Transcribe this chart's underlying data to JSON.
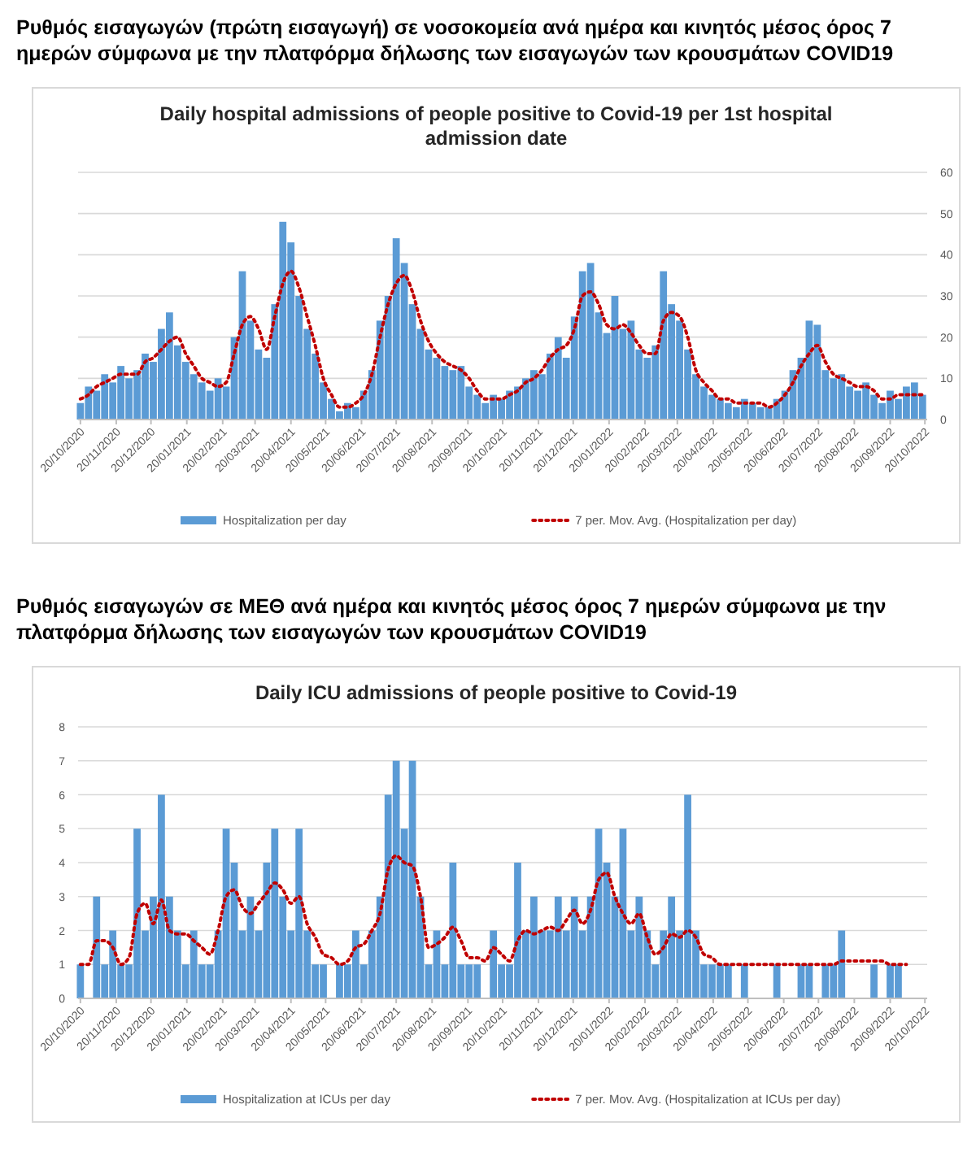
{
  "chart_data": [
    {
      "type": "bar",
      "title": "Ρυθμός εισαγωγών (πρώτη εισαγωγή) σε νοσοκομεία ανά ημέρα και κινητός μέσος όρος 7 ημερών σύμφωνα με την πλατφόρμα δήλωσης των εισαγωγών των κρουσμάτων COVID19",
      "subtitle": "Daily hospital admissions of people positive to Covid-19 per 1st hospital admission date",
      "grid": "y",
      "legend": "bottom",
      "x": [
        "2020-10-20",
        "2020-10-27",
        "2020-11-03",
        "2020-11-10",
        "2020-11-17",
        "2020-11-24",
        "2020-12-01",
        "2020-12-08",
        "2020-12-15",
        "2020-12-22",
        "2020-12-29",
        "2021-01-05",
        "2021-01-12",
        "2021-01-19",
        "2021-01-26",
        "2021-02-02",
        "2021-02-09",
        "2021-02-16",
        "2021-02-23",
        "2021-03-02",
        "2021-03-09",
        "2021-03-16",
        "2021-03-23",
        "2021-03-30",
        "2021-04-06",
        "2021-04-13",
        "2021-04-20",
        "2021-04-27",
        "2021-05-04",
        "2021-05-11",
        "2021-05-18",
        "2021-05-25",
        "2021-06-01",
        "2021-06-08",
        "2021-06-15",
        "2021-06-22",
        "2021-06-29",
        "2021-07-06",
        "2021-07-13",
        "2021-07-20",
        "2021-07-27",
        "2021-08-03",
        "2021-08-10",
        "2021-08-17",
        "2021-08-24",
        "2021-08-31",
        "2021-09-07",
        "2021-09-14",
        "2021-09-21",
        "2021-09-28",
        "2021-10-05",
        "2021-10-12",
        "2021-10-19",
        "2021-10-26",
        "2021-11-02",
        "2021-11-09",
        "2021-11-16",
        "2021-11-23",
        "2021-11-30",
        "2021-12-07",
        "2021-12-14",
        "2021-12-21",
        "2021-12-28",
        "2022-01-04",
        "2022-01-11",
        "2022-01-18",
        "2022-01-25",
        "2022-02-01",
        "2022-02-08",
        "2022-02-15",
        "2022-02-22",
        "2022-03-01",
        "2022-03-08",
        "2022-03-15",
        "2022-03-22",
        "2022-03-29",
        "2022-04-05",
        "2022-04-12",
        "2022-04-19",
        "2022-04-26",
        "2022-05-03",
        "2022-05-10",
        "2022-05-17",
        "2022-05-24",
        "2022-05-31",
        "2022-06-07",
        "2022-06-14",
        "2022-06-21",
        "2022-06-28",
        "2022-07-05",
        "2022-07-12",
        "2022-07-19",
        "2022-07-26",
        "2022-08-02",
        "2022-08-09",
        "2022-08-16",
        "2022-08-23",
        "2022-08-30",
        "2022-09-06",
        "2022-09-13",
        "2022-09-20",
        "2022-09-27",
        "2022-10-04",
        "2022-10-11",
        "2022-10-18"
      ],
      "xlim": [
        "2020-10-18",
        "2022-10-22"
      ],
      "xticks": [
        {
          "value": "2020-10-20",
          "label": "20/10/2020"
        },
        {
          "value": "2020-11-20",
          "label": "20/11/2020"
        },
        {
          "value": "2020-12-20",
          "label": "20/12/2020"
        },
        {
          "value": "2021-01-20",
          "label": "20/01/2021"
        },
        {
          "value": "2021-02-20",
          "label": "20/02/2021"
        },
        {
          "value": "2021-03-20",
          "label": "20/03/2021"
        },
        {
          "value": "2021-04-20",
          "label": "20/04/2021"
        },
        {
          "value": "2021-05-20",
          "label": "20/05/2021"
        },
        {
          "value": "2021-06-20",
          "label": "20/06/2021"
        },
        {
          "value": "2021-07-20",
          "label": "20/07/2021"
        },
        {
          "value": "2021-08-20",
          "label": "20/08/2021"
        },
        {
          "value": "2021-09-20",
          "label": "20/09/2021"
        },
        {
          "value": "2021-10-20",
          "label": "20/10/2021"
        },
        {
          "value": "2021-11-20",
          "label": "20/11/2021"
        },
        {
          "value": "2021-12-20",
          "label": "20/12/2021"
        },
        {
          "value": "2022-01-20",
          "label": "20/01/2022"
        },
        {
          "value": "2022-02-20",
          "label": "20/02/2022"
        },
        {
          "value": "2022-03-20",
          "label": "20/03/2022"
        },
        {
          "value": "2022-04-20",
          "label": "20/04/2022"
        },
        {
          "value": "2022-05-20",
          "label": "20/05/2022"
        },
        {
          "value": "2022-06-20",
          "label": "20/06/2022"
        },
        {
          "value": "2022-07-20",
          "label": "20/07/2022"
        },
        {
          "value": "2022-08-20",
          "label": "20/08/2022"
        },
        {
          "value": "2022-09-20",
          "label": "20/09/2022"
        },
        {
          "value": "2022-10-20",
          "label": "20/10/2022"
        }
      ],
      "ylim": [
        0,
        60
      ],
      "yticks": [
        0,
        10,
        20,
        30,
        40,
        50,
        60
      ],
      "series": [
        {
          "name": "Hospitalization per day",
          "color": "#5b9bd5",
          "values": [
            4,
            8,
            7,
            11,
            9,
            13,
            10,
            12,
            16,
            14,
            22,
            26,
            18,
            14,
            11,
            9,
            7,
            10,
            8,
            20,
            36,
            24,
            17,
            15,
            28,
            48,
            43,
            30,
            22,
            16,
            9,
            5,
            2,
            4,
            3,
            7,
            12,
            24,
            30,
            44,
            38,
            28,
            22,
            17,
            15,
            13,
            12,
            13,
            8,
            6,
            4,
            6,
            5,
            7,
            8,
            10,
            12,
            11,
            16,
            20,
            15,
            25,
            36,
            38,
            26,
            21,
            30,
            22,
            24,
            17,
            15,
            18,
            36,
            28,
            24,
            17,
            11,
            8,
            6,
            5,
            4,
            3,
            5,
            4,
            3,
            3,
            5,
            7,
            12,
            15,
            24,
            23,
            12,
            10,
            11,
            8,
            7,
            9,
            6,
            4,
            7,
            5,
            8,
            9,
            6
          ]
        },
        {
          "name": "7 per. Mov. Avg. (Hospitalization per day)",
          "type": "line",
          "color": "#c00000",
          "line_style": "dotted",
          "values": [
            5,
            6,
            8,
            9,
            10,
            11,
            11,
            11,
            14,
            15,
            17,
            19,
            20,
            16,
            13,
            10,
            9,
            8,
            9,
            16,
            23,
            25,
            22,
            17,
            25,
            33,
            36,
            32,
            25,
            18,
            10,
            6,
            3,
            3,
            4,
            6,
            11,
            20,
            28,
            33,
            35,
            31,
            24,
            19,
            16,
            14,
            13,
            12,
            10,
            7,
            5,
            5,
            5,
            6,
            7,
            9,
            10,
            12,
            15,
            17,
            18,
            22,
            30,
            31,
            28,
            23,
            22,
            23,
            21,
            18,
            16,
            16,
            24,
            26,
            25,
            20,
            12,
            9,
            7,
            5,
            5,
            4,
            4,
            4,
            4,
            3,
            4,
            6,
            9,
            13,
            16,
            18,
            14,
            11,
            10,
            9,
            8,
            8,
            7,
            5,
            5,
            6,
            6,
            6,
            6
          ]
        }
      ]
    },
    {
      "type": "bar",
      "title": "Ρυθμός εισαγωγών σε ΜΕΘ ανά ημέρα και κινητός μέσος όρος 7 ημερών σύμφωνα με την πλατφόρμα δήλωσης των εισαγωγών των κρουσμάτων COVID19",
      "subtitle": "Daily ICU admissions of people positive to Covid-19",
      "grid": "y",
      "legend": "bottom",
      "x": [
        "2020-10-20",
        "2020-10-27",
        "2020-11-03",
        "2020-11-10",
        "2020-11-17",
        "2020-11-24",
        "2020-12-01",
        "2020-12-08",
        "2020-12-15",
        "2020-12-22",
        "2020-12-29",
        "2021-01-05",
        "2021-01-12",
        "2021-01-19",
        "2021-01-26",
        "2021-02-02",
        "2021-02-09",
        "2021-02-16",
        "2021-02-23",
        "2021-03-02",
        "2021-03-09",
        "2021-03-16",
        "2021-03-23",
        "2021-03-30",
        "2021-04-06",
        "2021-04-13",
        "2021-04-20",
        "2021-04-27",
        "2021-05-04",
        "2021-05-11",
        "2021-05-18",
        "2021-05-25",
        "2021-06-01",
        "2021-06-08",
        "2021-06-15",
        "2021-06-22",
        "2021-06-29",
        "2021-07-06",
        "2021-07-13",
        "2021-07-20",
        "2021-07-27",
        "2021-08-03",
        "2021-08-10",
        "2021-08-17",
        "2021-08-24",
        "2021-08-31",
        "2021-09-07",
        "2021-09-14",
        "2021-09-21",
        "2021-09-28",
        "2021-10-05",
        "2021-10-12",
        "2021-10-19",
        "2021-10-26",
        "2021-11-02",
        "2021-11-09",
        "2021-11-16",
        "2021-11-23",
        "2021-11-30",
        "2021-12-07",
        "2021-12-14",
        "2021-12-21",
        "2021-12-28",
        "2022-01-04",
        "2022-01-11",
        "2022-01-18",
        "2022-01-25",
        "2022-02-01",
        "2022-02-08",
        "2022-02-15",
        "2022-02-22",
        "2022-03-01",
        "2022-03-08",
        "2022-03-15",
        "2022-03-22",
        "2022-03-29",
        "2022-04-05",
        "2022-04-12",
        "2022-04-19",
        "2022-04-26",
        "2022-05-03",
        "2022-05-10",
        "2022-05-17",
        "2022-05-24",
        "2022-05-31",
        "2022-06-07",
        "2022-06-14",
        "2022-06-21",
        "2022-06-28",
        "2022-07-05",
        "2022-07-12",
        "2022-07-19",
        "2022-07-26",
        "2022-08-02",
        "2022-08-09",
        "2022-08-16",
        "2022-08-23",
        "2022-08-30",
        "2022-09-06",
        "2022-09-13",
        "2022-09-20",
        "2022-09-27",
        "2022-10-04",
        "2022-10-11",
        "2022-10-18"
      ],
      "xlim": [
        "2020-10-18",
        "2022-10-22"
      ],
      "xticks": [
        {
          "value": "2020-10-20",
          "label": "20/10/2020"
        },
        {
          "value": "2020-11-20",
          "label": "20/11/2020"
        },
        {
          "value": "2020-12-20",
          "label": "20/12/2020"
        },
        {
          "value": "2021-01-20",
          "label": "20/01/2021"
        },
        {
          "value": "2021-02-20",
          "label": "20/02/2021"
        },
        {
          "value": "2021-03-20",
          "label": "20/03/2021"
        },
        {
          "value": "2021-04-20",
          "label": "20/04/2021"
        },
        {
          "value": "2021-05-20",
          "label": "20/05/2021"
        },
        {
          "value": "2021-06-20",
          "label": "20/06/2021"
        },
        {
          "value": "2021-07-20",
          "label": "20/07/2021"
        },
        {
          "value": "2021-08-20",
          "label": "20/08/2021"
        },
        {
          "value": "2021-09-20",
          "label": "20/09/2021"
        },
        {
          "value": "2021-10-20",
          "label": "20/10/2021"
        },
        {
          "value": "2021-11-20",
          "label": "20/11/2021"
        },
        {
          "value": "2021-12-20",
          "label": "20/12/2021"
        },
        {
          "value": "2022-01-20",
          "label": "20/01/2022"
        },
        {
          "value": "2022-02-20",
          "label": "20/02/2022"
        },
        {
          "value": "2022-03-20",
          "label": "20/03/2022"
        },
        {
          "value": "2022-04-20",
          "label": "20/04/2022"
        },
        {
          "value": "2022-05-20",
          "label": "20/05/2022"
        },
        {
          "value": "2022-06-20",
          "label": "20/06/2022"
        },
        {
          "value": "2022-07-20",
          "label": "20/07/2022"
        },
        {
          "value": "2022-08-20",
          "label": "20/08/2022"
        },
        {
          "value": "2022-09-20",
          "label": "20/09/2022"
        },
        {
          "value": "2022-10-20",
          "label": "20/10/2022"
        }
      ],
      "ylim": [
        0,
        8
      ],
      "yticks": [
        0,
        1,
        2,
        3,
        4,
        5,
        6,
        7,
        8
      ],
      "series": [
        {
          "name": "Hospitalization at ICUs per day",
          "color": "#5b9bd5",
          "values": [
            1,
            0,
            3,
            1,
            2,
            1,
            1,
            5,
            2,
            3,
            6,
            3,
            2,
            1,
            2,
            1,
            1,
            2,
            5,
            4,
            2,
            3,
            2,
            4,
            5,
            3,
            2,
            5,
            2,
            1,
            1,
            0,
            1,
            1,
            2,
            1,
            2,
            3,
            6,
            7,
            5,
            7,
            3,
            1,
            2,
            1,
            4,
            1,
            1,
            1,
            0,
            2,
            1,
            1,
            4,
            2,
            3,
            2,
            2,
            3,
            2,
            3,
            2,
            3,
            5,
            4,
            3,
            5,
            2,
            3,
            2,
            1,
            2,
            3,
            2,
            6,
            2,
            1,
            1,
            1,
            1,
            0,
            1,
            0,
            0,
            0,
            1,
            0,
            0,
            1,
            1,
            0,
            1,
            1,
            2,
            0,
            0,
            0,
            1,
            0,
            1,
            1,
            0,
            0,
            0
          ]
        },
        {
          "name": "7 per. Mov. Avg. (Hospitalization at ICUs per day)",
          "type": "line",
          "color": "#c00000",
          "line_style": "dotted",
          "values": [
            1,
            1,
            1.7,
            1.7,
            1.5,
            1,
            1.2,
            2.5,
            2.8,
            2.2,
            2.9,
            2,
            1.9,
            1.9,
            1.7,
            1.5,
            1.3,
            2,
            3,
            3.2,
            2.7,
            2.5,
            2.8,
            3.1,
            3.4,
            3.2,
            2.8,
            3,
            2.2,
            1.8,
            1.3,
            1.2,
            1,
            1.1,
            1.5,
            1.6,
            2,
            2.5,
            3.8,
            4.2,
            4,
            3.9,
            3,
            1.5,
            1.6,
            1.8,
            2.1,
            1.7,
            1.2,
            1.2,
            1.1,
            1.5,
            1.3,
            1.1,
            1.7,
            2,
            1.9,
            2,
            2.1,
            2,
            2.3,
            2.6,
            2.2,
            2.6,
            3.5,
            3.7,
            3,
            2.5,
            2.2,
            2.5,
            1.8,
            1.3,
            1.5,
            1.9,
            1.8,
            2,
            1.8,
            1.3,
            1.2,
            1,
            1,
            1,
            1,
            1,
            1,
            1,
            1,
            1,
            1,
            1,
            1,
            1,
            1,
            1,
            1.1,
            1.1,
            1.1,
            1.1,
            1.1,
            1.1,
            1,
            1,
            1,
            null,
            null
          ]
        }
      ]
    }
  ]
}
